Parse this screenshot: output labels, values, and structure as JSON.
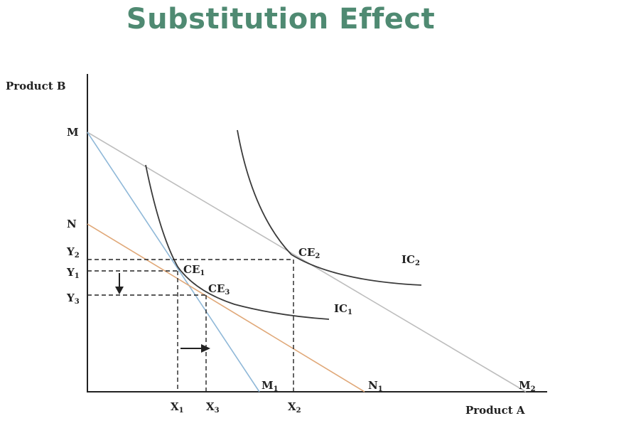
{
  "title": "Substitution Effect",
  "axes": {
    "y_label": "Product B",
    "x_label": "Product A"
  },
  "points": {
    "M": "M",
    "N": "N",
    "Y2": {
      "base": "Y",
      "sub": "2"
    },
    "Y1": {
      "base": "Y",
      "sub": "1"
    },
    "Y3": {
      "base": "Y",
      "sub": "3"
    },
    "X1": {
      "base": "X",
      "sub": "1"
    },
    "X3": {
      "base": "X",
      "sub": "3"
    },
    "X2": {
      "base": "X",
      "sub": "2"
    },
    "M1": {
      "base": "M",
      "sub": "1"
    },
    "N1": {
      "base": "N",
      "sub": "1"
    },
    "M2": {
      "base": "M",
      "sub": "2"
    },
    "CE1": {
      "base": "CE",
      "sub": "1"
    },
    "CE2": {
      "base": "CE",
      "sub": "2"
    },
    "CE3": {
      "base": "CE",
      "sub": "3"
    },
    "IC1": {
      "base": "IC",
      "sub": "1"
    },
    "IC2": {
      "base": "IC",
      "sub": "2"
    }
  },
  "colors": {
    "title": "#4f8a72",
    "budget_MM1": "#8fb8d8",
    "budget_NN1": "#e0a878",
    "budget_MM2": "#b9b9b9",
    "curves": "#3a3a3a"
  }
}
